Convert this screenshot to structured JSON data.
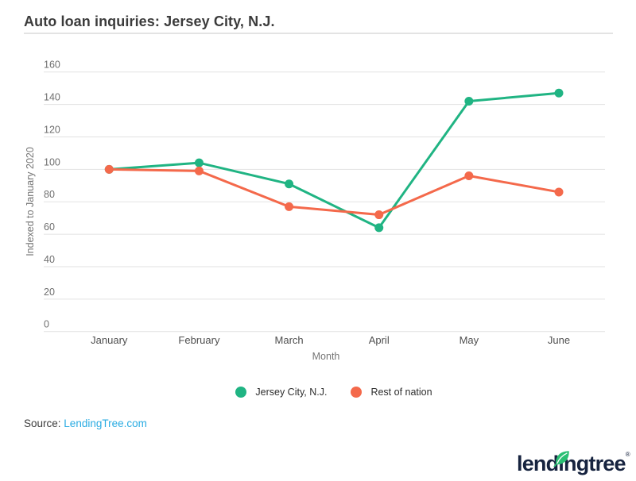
{
  "header": {
    "title": "Auto loan inquiries: Jersey City, N.J."
  },
  "chart_data": {
    "type": "line",
    "categories": [
      "January",
      "February",
      "March",
      "April",
      "May",
      "June"
    ],
    "series": [
      {
        "name": "Jersey City, N.J.",
        "color": "#20b483",
        "values": [
          100,
          104,
          91,
          64,
          142,
          147
        ]
      },
      {
        "name": "Rest of nation",
        "color": "#f4694b",
        "values": [
          100,
          99,
          77,
          72,
          96,
          86
        ]
      }
    ],
    "title": "Auto loan inquiries: Jersey City, N.J.",
    "xlabel": "Month",
    "ylabel": "Indexed to January 2020",
    "ylim": [
      0,
      160
    ],
    "ytick_step": 20,
    "grid": true,
    "legend_position": "bottom"
  },
  "footer": {
    "source_label": "Source:",
    "source_link": "LendingTree.com"
  },
  "logo": {
    "brand": "lendingtree",
    "registered": "®",
    "leaf_icon": "leaf-icon",
    "leaf_color": "#2abf73",
    "navy": "#16233f"
  },
  "colors": {
    "accent_green": "#20b483",
    "accent_orange": "#f4694b",
    "link_blue": "#29abe2",
    "gridline": "#e2e2e2",
    "tick_text": "#6f6f6f",
    "month_text": "#4f4f4f",
    "axis_title_text": "#757575"
  }
}
